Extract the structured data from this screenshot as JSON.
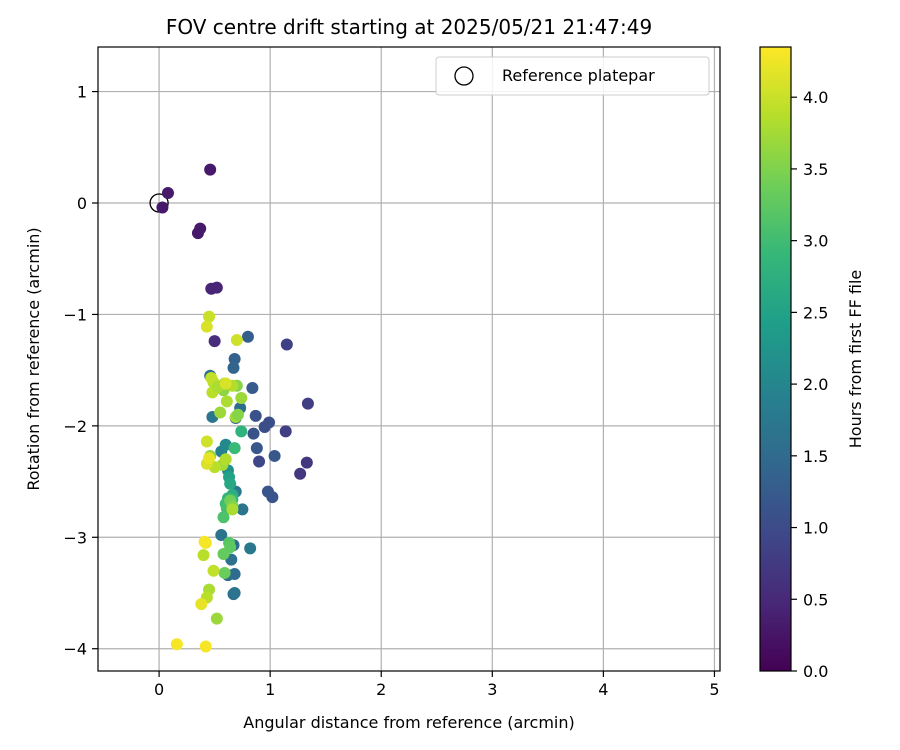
{
  "chart_data": {
    "type": "scatter",
    "title": "FOV centre drift starting at 2025/05/21 21:47:49",
    "xlabel": "Angular distance from reference (arcmin)",
    "ylabel": "Rotation from reference (arcmin)",
    "xlim": [
      -0.55,
      5.05
    ],
    "ylim": [
      -4.2,
      1.4
    ],
    "xticks": [
      0,
      1,
      2,
      3,
      4,
      5
    ],
    "yticks": [
      1,
      0,
      -1,
      -2,
      -3,
      -4
    ],
    "grid": true,
    "legend": {
      "placement": "top-right",
      "entries": [
        "Reference platepar"
      ]
    },
    "reference": {
      "x": 0,
      "y": 0
    },
    "colorbar": {
      "label": "Hours from first FF file",
      "colormap": "viridis",
      "range": [
        0.0,
        4.35
      ],
      "ticks": [
        "0.0",
        "0.5",
        "1.0",
        "1.5",
        "2.0",
        "2.5",
        "3.0",
        "3.5",
        "4.0"
      ],
      "stops": [
        "#440154",
        "#482878",
        "#3e4989",
        "#31688e",
        "#26828e",
        "#1f9e89",
        "#35b779",
        "#6ece58",
        "#b5de2b",
        "#fde725"
      ]
    },
    "series": [
      {
        "x": [
          0.03,
          0.08,
          0.46,
          0.35,
          0.37,
          0.47,
          0.52,
          0.5,
          1.15,
          1.34,
          1.27,
          1.33,
          1.02,
          0.98,
          0.85,
          1.14,
          0.99,
          0.95,
          0.88,
          0.9,
          1.04,
          0.87,
          0.84,
          0.8,
          0.68,
          0.67,
          0.73,
          0.69,
          0.46,
          0.48,
          0.69,
          0.67,
          0.65,
          0.68,
          0.75,
          0.82,
          0.56,
          0.67,
          0.68,
          0.62,
          0.56,
          0.6,
          0.62,
          0.63,
          0.64,
          0.66,
          0.74,
          0.68,
          0.66,
          0.62,
          0.6,
          0.61,
          0.58,
          0.63,
          0.64,
          0.7,
          0.58,
          0.59,
          0.64,
          0.66,
          0.69,
          0.58,
          0.59,
          0.55,
          0.74,
          0.71,
          0.61,
          0.66,
          0.49,
          0.47,
          0.48,
          0.53,
          0.6,
          0.45,
          0.43,
          0.46,
          0.57,
          0.6,
          0.66,
          0.5,
          0.4,
          0.45,
          0.43,
          0.52,
          0.49,
          0.43,
          0.45,
          0.43,
          0.7,
          0.6,
          0.38,
          0.42,
          0.41,
          0.16,
          0.42
        ],
        "y": [
          -0.04,
          0.09,
          0.3,
          -0.27,
          -0.23,
          -0.77,
          -0.76,
          -1.24,
          -1.27,
          -1.8,
          -2.43,
          -2.33,
          -2.64,
          -2.59,
          -2.07,
          -2.05,
          -1.97,
          -2.01,
          -2.2,
          -2.32,
          -2.27,
          -1.91,
          -1.66,
          -1.2,
          -1.4,
          -1.48,
          -1.84,
          -1.93,
          -1.55,
          -1.92,
          -2.59,
          -3.07,
          -3.2,
          -3.33,
          -2.75,
          -3.1,
          -2.98,
          -3.51,
          -3.5,
          -3.34,
          -2.23,
          -2.17,
          -2.4,
          -2.46,
          -2.52,
          -2.62,
          -2.05,
          -2.2,
          -2.66,
          -2.65,
          -2.7,
          -2.74,
          -2.82,
          -3.05,
          -3.09,
          -1.64,
          -3.15,
          -3.32,
          -2.67,
          -2.72,
          -1.92,
          -1.68,
          -1.62,
          -1.88,
          -1.75,
          -1.9,
          -1.78,
          -1.64,
          -1.61,
          -1.57,
          -1.7,
          -1.65,
          -1.62,
          -1.02,
          -1.11,
          -2.27,
          -2.35,
          -2.3,
          -2.75,
          -2.37,
          -3.16,
          -3.47,
          -3.54,
          -3.73,
          -3.3,
          -2.34,
          -2.29,
          -2.14,
          -1.23,
          -1.62,
          -3.6,
          -3.05,
          -3.04,
          -3.96,
          -3.98
        ],
        "color_values": [
          0.3,
          0.3,
          0.3,
          0.3,
          0.3,
          0.45,
          0.45,
          0.55,
          0.85,
          0.8,
          0.7,
          0.7,
          1.15,
          1.15,
          1.1,
          0.8,
          1.05,
          1.05,
          1.2,
          0.95,
          1.2,
          1.1,
          1.25,
          1.3,
          1.35,
          1.4,
          1.55,
          1.45,
          1.6,
          1.7,
          1.75,
          1.55,
          1.6,
          1.55,
          1.7,
          1.75,
          1.65,
          1.6,
          1.65,
          1.55,
          1.9,
          2.05,
          2.15,
          2.5,
          2.6,
          2.7,
          2.8,
          2.95,
          2.9,
          2.85,
          3.0,
          3.05,
          3.1,
          3.2,
          3.25,
          3.55,
          3.3,
          3.35,
          3.4,
          3.5,
          3.75,
          3.6,
          3.65,
          3.7,
          3.7,
          3.55,
          3.8,
          3.85,
          3.9,
          3.95,
          3.9,
          3.8,
          3.95,
          4.0,
          4.1,
          3.6,
          3.75,
          3.85,
          3.8,
          3.9,
          3.9,
          3.8,
          3.9,
          3.7,
          3.95,
          4.1,
          4.2,
          4.05,
          4.05,
          4.1,
          4.2,
          4.25,
          4.3,
          4.3,
          4.3
        ]
      }
    ]
  }
}
